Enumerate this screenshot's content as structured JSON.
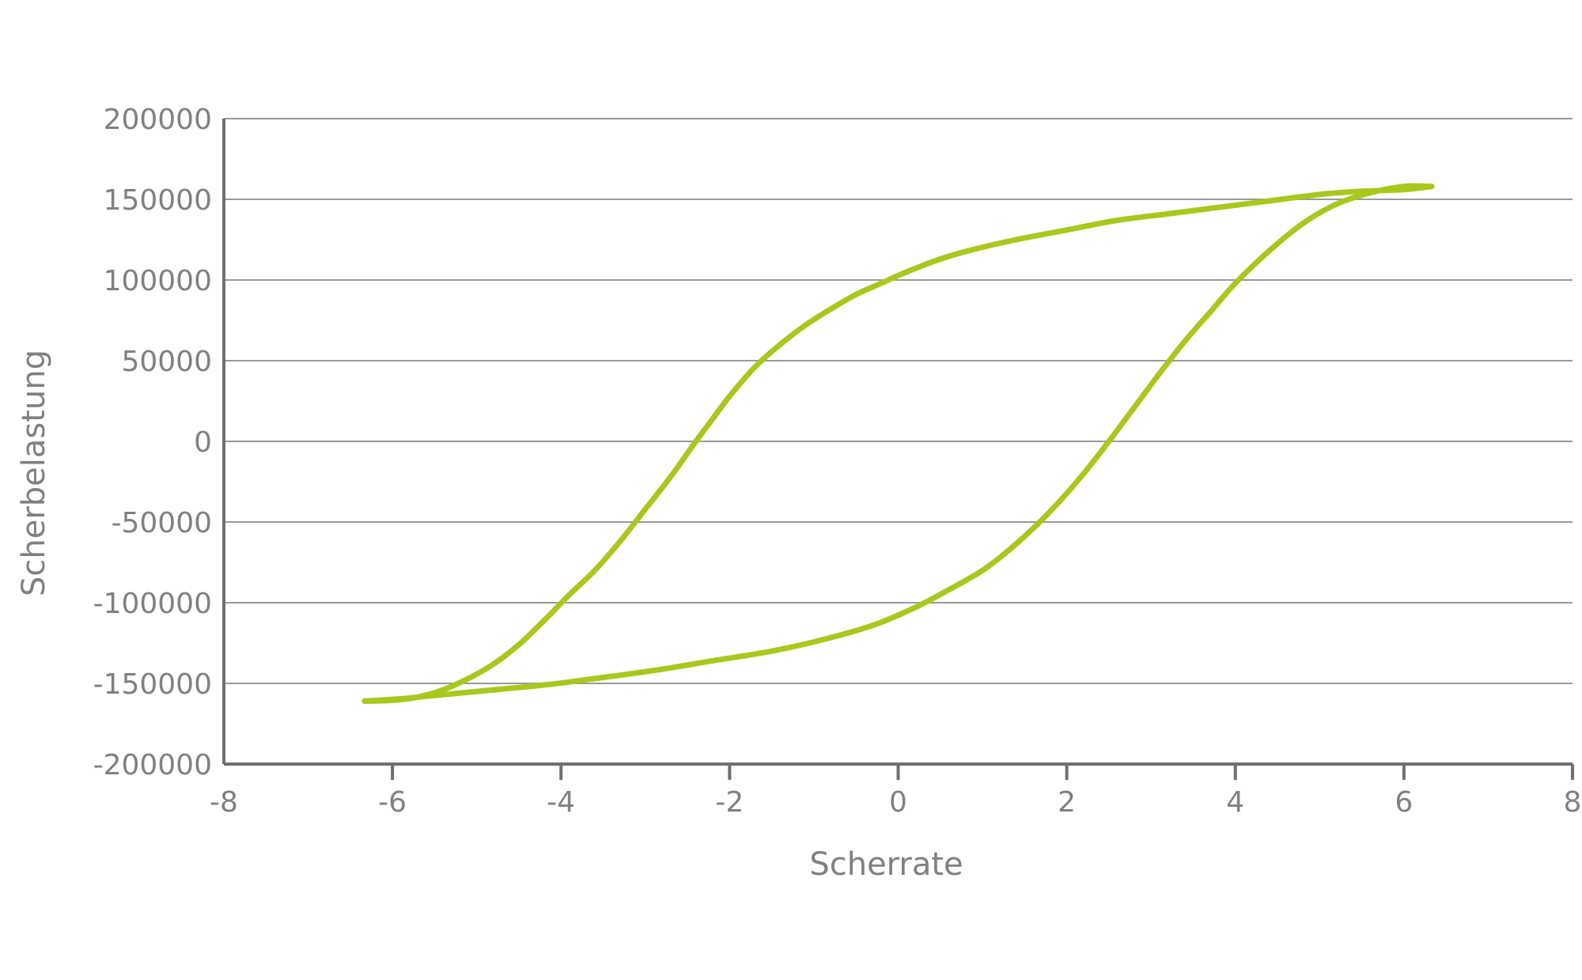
{
  "chart_data": {
    "type": "line",
    "title": "",
    "xlabel": "Scherrate",
    "ylabel": "Scherbelastung",
    "xlim": [
      -8,
      8
    ],
    "ylim": [
      -200000,
      200000
    ],
    "x_ticks": [
      -8,
      -6,
      -4,
      -2,
      0,
      2,
      4,
      6,
      8
    ],
    "x_tick_labels": [
      "-8",
      "-6",
      "-4",
      "-2",
      "0",
      "2",
      "4",
      "6",
      "8"
    ],
    "y_ticks": [
      200000,
      150000,
      100000,
      50000,
      0,
      -50000,
      -100000,
      -150000,
      -200000
    ],
    "y_tick_labels": [
      "200000",
      "150000",
      "100000",
      "50000",
      "0",
      "-50000",
      "-100000",
      "-150000",
      "-200000"
    ],
    "grid": true,
    "legend": "none",
    "colors": {
      "series": "#a8c81e",
      "grid": "#9a9a9a",
      "axis": "#6f6f6f",
      "text": "#808080"
    },
    "series": [
      {
        "points": [
          [
            -6.33,
            -161000
          ],
          [
            -6.0,
            -160500
          ],
          [
            -5.7,
            -158500
          ],
          [
            -5.4,
            -154000
          ],
          [
            -5.1,
            -147000
          ],
          [
            -4.8,
            -138000
          ],
          [
            -4.5,
            -126000
          ],
          [
            -4.2,
            -111000
          ],
          [
            -3.9,
            -95000
          ],
          [
            -3.6,
            -80000
          ],
          [
            -3.3,
            -62000
          ],
          [
            -3.0,
            -42000
          ],
          [
            -2.7,
            -22000
          ],
          [
            -2.4,
            0
          ],
          [
            -2.2,
            14000
          ],
          [
            -2.0,
            28000
          ],
          [
            -1.7,
            46000
          ],
          [
            -1.4,
            60000
          ],
          [
            -1.1,
            72000
          ],
          [
            -0.8,
            82000
          ],
          [
            -0.5,
            91000
          ],
          [
            -0.2,
            98000
          ],
          [
            0.1,
            105000
          ],
          [
            0.5,
            113000
          ],
          [
            0.9,
            119000
          ],
          [
            1.4,
            125000
          ],
          [
            2.0,
            131000
          ],
          [
            2.6,
            137000
          ],
          [
            3.2,
            141000
          ],
          [
            3.8,
            145000
          ],
          [
            4.4,
            149000
          ],
          [
            5.0,
            153000
          ],
          [
            5.5,
            155000
          ],
          [
            6.0,
            156000
          ],
          [
            6.33,
            158000
          ]
        ]
      },
      {
        "points": [
          [
            6.33,
            158000
          ],
          [
            6.0,
            158000
          ],
          [
            5.6,
            154000
          ],
          [
            5.2,
            147000
          ],
          [
            4.8,
            135000
          ],
          [
            4.4,
            118000
          ],
          [
            4.0,
            98000
          ],
          [
            3.7,
            80000
          ],
          [
            3.4,
            62000
          ],
          [
            3.1,
            42000
          ],
          [
            2.8,
            21000
          ],
          [
            2.5,
            0
          ],
          [
            2.2,
            -20000
          ],
          [
            1.9,
            -38000
          ],
          [
            1.6,
            -54000
          ],
          [
            1.3,
            -68000
          ],
          [
            1.0,
            -80000
          ],
          [
            0.6,
            -92000
          ],
          [
            0.2,
            -103000
          ],
          [
            -0.3,
            -114000
          ],
          [
            -0.9,
            -123000
          ],
          [
            -1.5,
            -130000
          ],
          [
            -2.2,
            -136000
          ],
          [
            -2.9,
            -142000
          ],
          [
            -3.6,
            -147000
          ],
          [
            -4.2,
            -151000
          ],
          [
            -4.8,
            -154000
          ],
          [
            -5.4,
            -157000
          ],
          [
            -5.9,
            -159500
          ],
          [
            -6.33,
            -161000
          ]
        ]
      }
    ]
  }
}
